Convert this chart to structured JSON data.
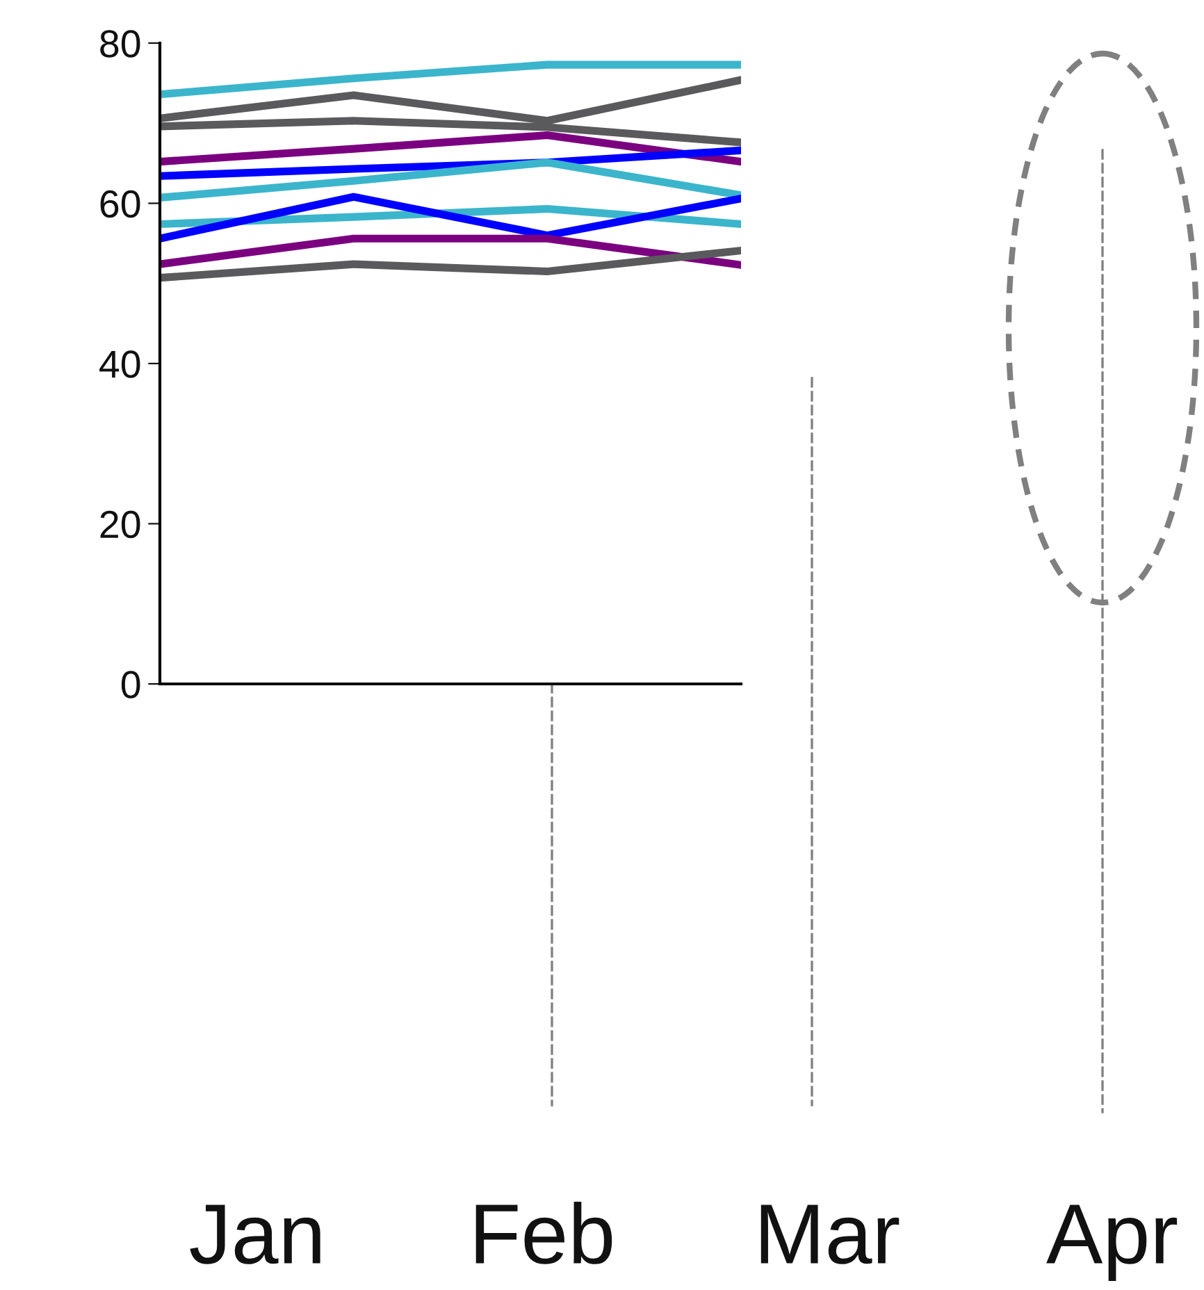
{
  "chart_data": {
    "type": "line",
    "categories": [
      null,
      null,
      null,
      null
    ],
    "annotations": [
      "Jan",
      "Feb",
      "Mar",
      "Apr"
    ],
    "series": [
      {
        "color": "#3bb5cc",
        "values": [
          73.6,
          75.6,
          77.3,
          77.3
        ]
      },
      {
        "color": "#5a5a5c",
        "values": [
          70.6,
          73.5,
          70.3,
          75.4
        ]
      },
      {
        "color": "#5a5a5c",
        "values": [
          69.6,
          70.3,
          69.5,
          67.6
        ]
      },
      {
        "color": "#7b0080",
        "values": [
          65.2,
          66.8,
          68.5,
          65.2
        ]
      },
      {
        "color": "#0000ff",
        "values": [
          63.4,
          64.3,
          65.1,
          66.6
        ]
      },
      {
        "color": "#3bb5cc",
        "values": [
          60.7,
          62.8,
          65.1,
          61.0
        ]
      },
      {
        "color": "#3bb5cc",
        "values": [
          57.4,
          58.3,
          59.3,
          57.4
        ]
      },
      {
        "color": "#0000ff",
        "values": [
          55.6,
          60.8,
          56.0,
          60.6
        ]
      },
      {
        "color": "#7b0080",
        "values": [
          52.4,
          55.6,
          55.6,
          52.3
        ]
      },
      {
        "color": "#5a5a5c",
        "values": [
          50.7,
          52.4,
          51.5,
          54.1
        ]
      }
    ],
    "ylim": [
      0,
      80
    ],
    "yticks": [
      0,
      20,
      40,
      60,
      80
    ],
    "grid": false,
    "legend": false,
    "marker": "none",
    "line_style": "solid"
  }
}
